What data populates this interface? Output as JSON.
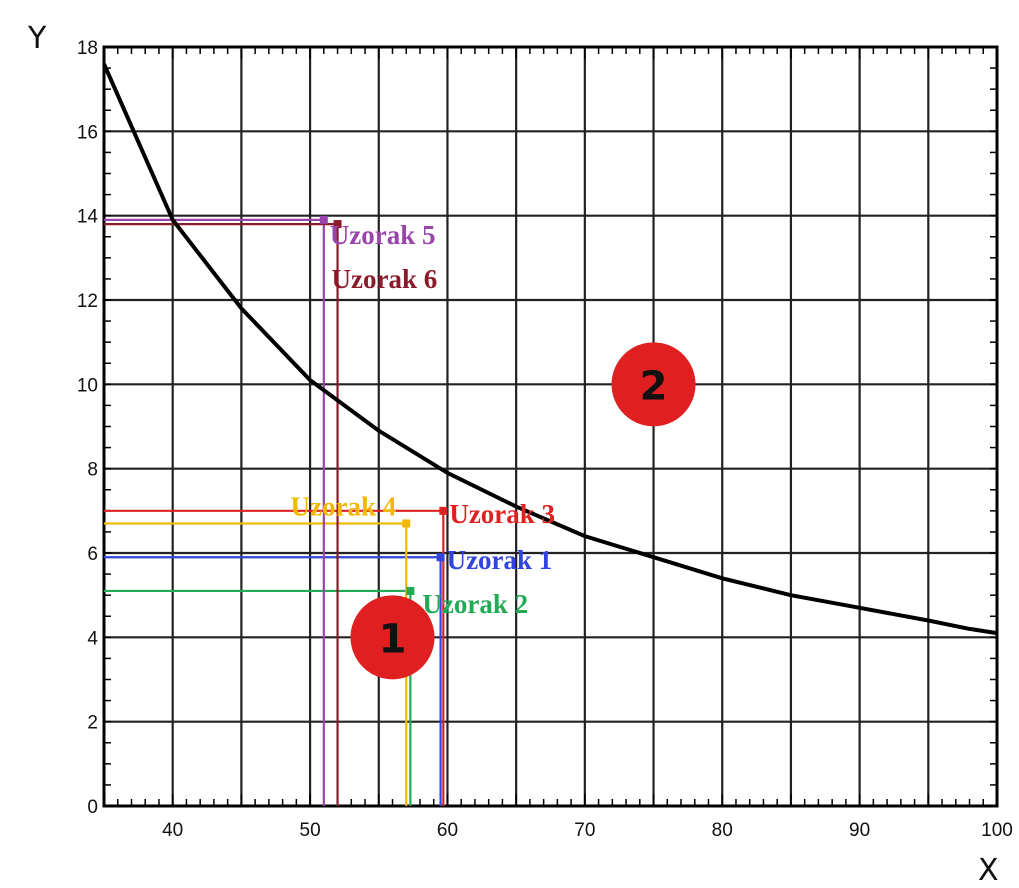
{
  "chart_data": {
    "type": "line",
    "xlabel": "X",
    "ylabel": "Y",
    "xlim": [
      35,
      100
    ],
    "ylim": [
      0,
      18
    ],
    "x_ticks": [
      40,
      50,
      60,
      70,
      80,
      90,
      100
    ],
    "y_ticks": [
      0,
      2,
      4,
      6,
      8,
      10,
      12,
      14,
      16,
      18
    ],
    "grid": true,
    "curve": {
      "x": [
        35,
        40,
        45,
        50,
        55,
        60,
        65,
        70,
        75,
        80,
        85,
        90,
        95,
        98,
        100
      ],
      "y": [
        17.6,
        13.9,
        11.8,
        10.1,
        8.9,
        7.9,
        7.1,
        6.4,
        5.9,
        5.4,
        5.0,
        4.7,
        4.4,
        4.2,
        4.1
      ],
      "color": "#000000"
    },
    "samples": [
      {
        "name": "Uzorak 1",
        "x": 59.5,
        "y": 5.9,
        "color": "#3344dd"
      },
      {
        "name": "Uzorak 2",
        "x": 57.3,
        "y": 5.1,
        "color": "#22aa55"
      },
      {
        "name": "Uzorak 3",
        "x": 59.7,
        "y": 7.0,
        "color": "#dd2222"
      },
      {
        "name": "Uzorak 4",
        "x": 57.0,
        "y": 6.7,
        "color": "#f0b800"
      },
      {
        "name": "Uzorak 5",
        "x": 51.0,
        "y": 13.9,
        "color": "#9944aa"
      },
      {
        "name": "Uzorak 6",
        "x": 52.0,
        "y": 13.8,
        "color": "#8b1a2a"
      }
    ],
    "regions": [
      {
        "label": "1",
        "x": 56,
        "y": 4.0
      },
      {
        "label": "2",
        "x": 75,
        "y": 10.0
      }
    ],
    "region_color": "#e02020"
  }
}
